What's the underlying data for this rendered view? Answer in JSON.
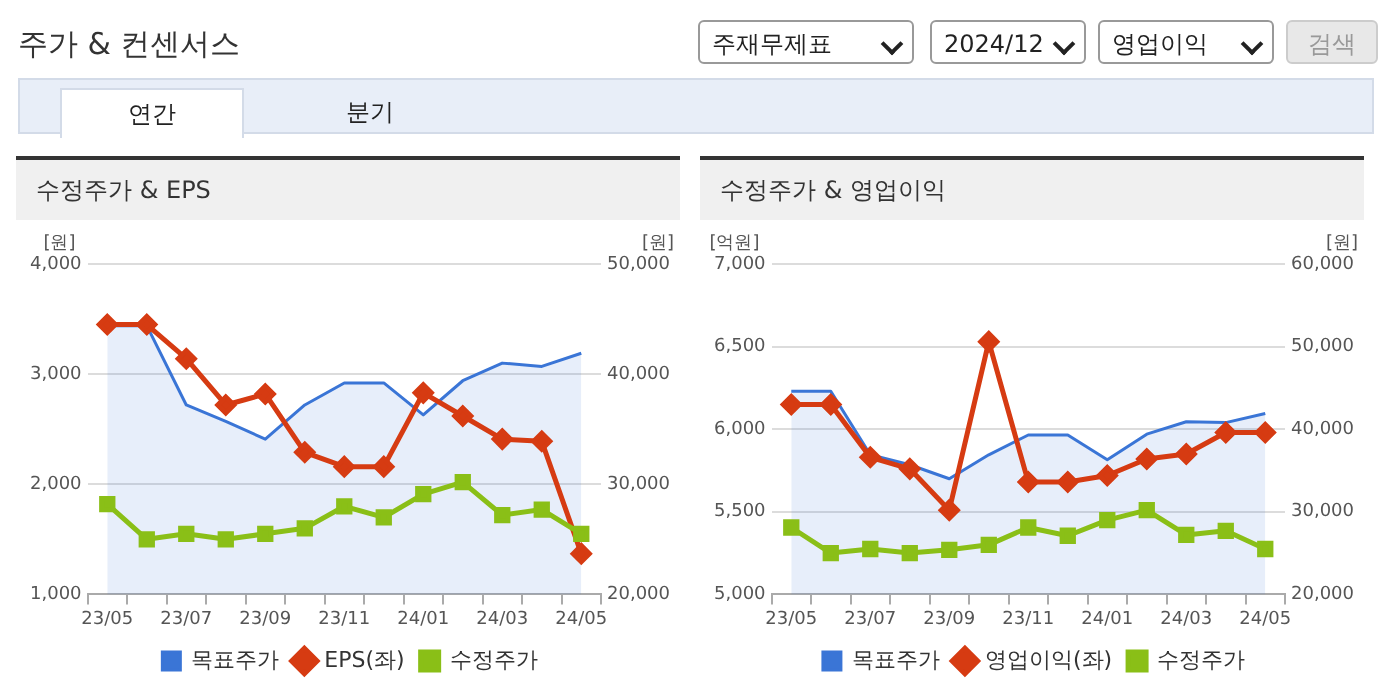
{
  "chart_data": [
    {
      "type": "other",
      "title": "주가 & 컨센서스",
      "annotations": [
        "주재무제표",
        "2024/12",
        "영업이익",
        "검색",
        "연간",
        "분기"
      ]
    },
    {
      "type": "line",
      "title": "수정주가 & EPS",
      "ylabel": "[원]",
      "y2label": "[원]",
      "categories": [
        "23/05",
        null,
        "23/07",
        null,
        "23/09",
        null,
        "23/11",
        null,
        "24/01",
        null,
        "24/03",
        null,
        "24/05"
      ],
      "series": [
        {
          "name": "목표주가",
          "type": "area",
          "axis": "y2",
          "color": "#3a75d6",
          "marker": "none",
          "values": [
            44400,
            44400,
            37200,
            35700,
            34100,
            37200,
            39200,
            39200,
            36300,
            39400,
            41000,
            40700,
            41900
          ]
        },
        {
          "name": "EPS(좌)",
          "type": "line",
          "axis": "y",
          "color": "#d63b12",
          "marker": "diamond",
          "values": [
            3450,
            3450,
            3140,
            2720,
            2820,
            2290,
            2160,
            2160,
            2830,
            2620,
            2410,
            2390,
            1370
          ]
        },
        {
          "name": "수정주가",
          "type": "line",
          "axis": "y2",
          "color": "#8abf17",
          "marker": "square",
          "values": [
            28200,
            25000,
            25500,
            25000,
            25500,
            26000,
            28000,
            27000,
            29100,
            30200,
            27200,
            27700,
            25500
          ]
        }
      ],
      "ylim": [
        1000,
        4000
      ],
      "yticks": [
        {
          "value": 1000,
          "label": "1,000"
        },
        {
          "value": 2000,
          "label": "2,000"
        },
        {
          "value": 3000,
          "label": "3,000"
        },
        {
          "value": 4000,
          "label": "4,000"
        }
      ],
      "y2lim": [
        20000,
        50000
      ],
      "y2ticks": [
        {
          "value": 20000,
          "label": "20,000"
        },
        {
          "value": 30000,
          "label": "30,000"
        },
        {
          "value": 40000,
          "label": "40,000"
        },
        {
          "value": 50000,
          "label": "50,000"
        }
      ],
      "grid": "y",
      "legend": "bottom"
    },
    {
      "type": "line",
      "title": "수정주가 & 영업이익",
      "ylabel": "[억원]",
      "y2label": "[원]",
      "categories": [
        "23/05",
        null,
        "23/07",
        null,
        "23/09",
        null,
        "23/11",
        null,
        "24/01",
        null,
        "24/03",
        null,
        "24/05"
      ],
      "series": [
        {
          "name": "목표주가",
          "type": "area",
          "axis": "y2",
          "color": "#3a75d6",
          "marker": "none",
          "values": [
            44600,
            44600,
            36900,
            35700,
            34000,
            36900,
            39300,
            39300,
            36300,
            39400,
            40900,
            40800,
            41900
          ]
        },
        {
          "name": "영업이익(좌)",
          "type": "line",
          "axis": "y",
          "color": "#d63b12",
          "marker": "diamond",
          "values": [
            6150,
            6150,
            5830,
            5760,
            5510,
            6530,
            5680,
            5680,
            5720,
            5820,
            5850,
            5980,
            5980
          ]
        },
        {
          "name": "수정주가",
          "type": "line",
          "axis": "y2",
          "color": "#8abf17",
          "marker": "square",
          "values": [
            28100,
            25000,
            25500,
            25000,
            25400,
            26000,
            28100,
            27100,
            29000,
            30200,
            27200,
            27700,
            25500
          ]
        }
      ],
      "ylim": [
        5000,
        7000
      ],
      "yticks": [
        {
          "value": 5000,
          "label": "5,000"
        },
        {
          "value": 5500,
          "label": "5,500"
        },
        {
          "value": 6000,
          "label": "6,000"
        },
        {
          "value": 6500,
          "label": "6,500"
        },
        {
          "value": 7000,
          "label": "7,000"
        }
      ],
      "y2lim": [
        20000,
        60000
      ],
      "y2ticks": [
        {
          "value": 20000,
          "label": "20,000"
        },
        {
          "value": 30000,
          "label": "30,000"
        },
        {
          "value": 40000,
          "label": "40,000"
        },
        {
          "value": 50000,
          "label": "50,000"
        },
        {
          "value": 60000,
          "label": "60,000"
        }
      ],
      "grid": "y",
      "legend": "bottom"
    }
  ]
}
